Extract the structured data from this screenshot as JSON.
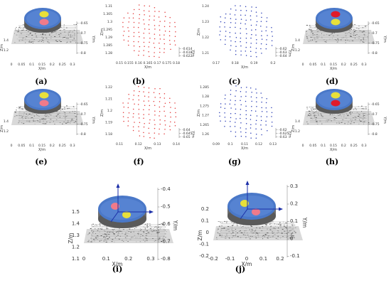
{
  "figure": {
    "panels": [
      {
        "id": "a",
        "caption": "(a)",
        "kind": "scene",
        "marker_colors": [
          "#e8e03a",
          "#f07a8a"
        ],
        "x_ticks": [
          "0",
          "0.05",
          "0.1",
          "0.15",
          "0.2",
          "0.25",
          "0.3"
        ],
        "x_label": "X/m",
        "z_ticks": [
          "1.4",
          "1.2"
        ],
        "z_label": "Z/m",
        "y_ticks": [
          "-0.65",
          "-0.7",
          "-0.75",
          "-0.8"
        ],
        "y_label": "Y/m"
      },
      {
        "id": "b",
        "caption": "(b)",
        "kind": "points",
        "point_color": "#e23a3a",
        "x_ticks": [
          "0.15",
          "0.155",
          "0.16",
          "0.165",
          "0.17",
          "0.175",
          "0.18"
        ],
        "x_label": "X/m",
        "z_ticks": [
          "1.31",
          "1.305",
          "1.3",
          "1.295",
          "1.29",
          "1.285",
          "1.28"
        ],
        "z_label": "Z/m",
        "y_ticks": [
          "-0.614",
          "-0.618",
          "-0.622"
        ],
        "y_label": "Y/m"
      },
      {
        "id": "c",
        "caption": "(c)",
        "kind": "points",
        "point_color": "#2c3fb5",
        "x_ticks": [
          "0.17",
          "0.18",
          "0.19",
          "0.2"
        ],
        "x_label": "X/m",
        "z_ticks": [
          "1.24",
          "1.23",
          "1.22",
          "1.21"
        ],
        "z_label": "Z/m",
        "y_ticks": [
          "-0.62",
          "-0.63",
          "-0.64"
        ],
        "y_label": "Y/m"
      },
      {
        "id": "d",
        "caption": "(d)",
        "kind": "scene",
        "marker_colors": [
          "#e01a2a",
          "#e8e03a"
        ],
        "x_ticks": [
          "0",
          "0.05",
          "0.1",
          "0.15",
          "0.2",
          "0.25",
          "0.3"
        ],
        "x_label": "X/m",
        "z_ticks": [
          "1.4",
          "1.2"
        ],
        "z_label": "Z/m",
        "y_ticks": [
          "-0.65",
          "-0.7",
          "-0.75",
          "-0.8"
        ],
        "y_label": "Y/m"
      },
      {
        "id": "e",
        "caption": "(e)",
        "kind": "scene",
        "marker_colors": [
          "#e8e03a",
          "#f07a8a"
        ],
        "x_ticks": [
          "0",
          "0.05",
          "0.1",
          "0.15",
          "0.2",
          "0.25",
          "0.3"
        ],
        "x_label": "X/m",
        "z_ticks": [
          "1.4",
          "1.2"
        ],
        "z_label": "Z/m",
        "y_ticks": [
          "-0.65",
          "-0.7",
          "-0.75",
          "-0.8"
        ],
        "y_label": "Y/m"
      },
      {
        "id": "f",
        "caption": "(f)",
        "kind": "points",
        "point_color": "#e23a3a",
        "x_ticks": [
          "0.11",
          "0.12",
          "0.13",
          "0.14"
        ],
        "x_label": "X/m",
        "z_ticks": [
          "1.22",
          "1.21",
          "1.2",
          "1.19",
          "1.18"
        ],
        "z_label": "Z/m",
        "y_ticks": [
          "-0.64",
          "-0.645",
          "-0.65"
        ],
        "y_label": "Y/m"
      },
      {
        "id": "g",
        "caption": "(g)",
        "kind": "points",
        "point_color": "#2c3fb5",
        "x_ticks": [
          "0.09",
          "0.1",
          "0.11",
          "0.12",
          "0.13"
        ],
        "x_label": "X/m",
        "z_ticks": [
          "1.285",
          "1.28",
          "1.275",
          "1.27",
          "1.265",
          "1.26"
        ],
        "z_label": "Z/m",
        "y_ticks": [
          "-0.62",
          "-0.625",
          "-0.63"
        ],
        "y_label": "Y/m"
      },
      {
        "id": "h",
        "caption": "(h)",
        "kind": "scene",
        "marker_colors": [
          "#e8e03a",
          "#e01a2a"
        ],
        "x_ticks": [
          "0",
          "0.05",
          "0.1",
          "0.15",
          "0.2",
          "0.25",
          "0.3"
        ],
        "x_label": "X/m",
        "z_ticks": [
          "1.4",
          "1.2"
        ],
        "z_label": "Z/m",
        "y_ticks": [
          "-0.65",
          "-0.7",
          "-0.75",
          "-0.8"
        ],
        "y_label": "Y/m"
      },
      {
        "id": "i",
        "caption": "(i)",
        "kind": "scene-large",
        "marker_colors": [
          "#f07a8a",
          "#e8e03a"
        ],
        "x_ticks": [
          "0",
          "0.1",
          "0.2",
          "0.3"
        ],
        "x_label": "X/m",
        "z_ticks": [
          "1.5",
          "1.4",
          "1.3",
          "1.2",
          "1.1"
        ],
        "z_label": "Z/m",
        "y_ticks": [
          "-0.4",
          "-0.5",
          "-0.6",
          "-0.7",
          "-0.8"
        ],
        "y_label": "Y/m"
      },
      {
        "id": "j",
        "caption": "(j)",
        "kind": "scene-large",
        "marker_colors": [
          "#e8e03a",
          "#f07a8a"
        ],
        "x_ticks": [
          "-0.2",
          "-0.1",
          "0",
          "0.1",
          "0.2"
        ],
        "x_label": "X/m",
        "z_ticks": [
          "0.2",
          "0.1",
          "0",
          "-0.1",
          "-0.2"
        ],
        "z_label": "Z/m",
        "y_ticks": [
          "0.3",
          "0.2",
          "0.1",
          "0",
          "-0.1"
        ],
        "y_label": "Y/m"
      }
    ]
  }
}
